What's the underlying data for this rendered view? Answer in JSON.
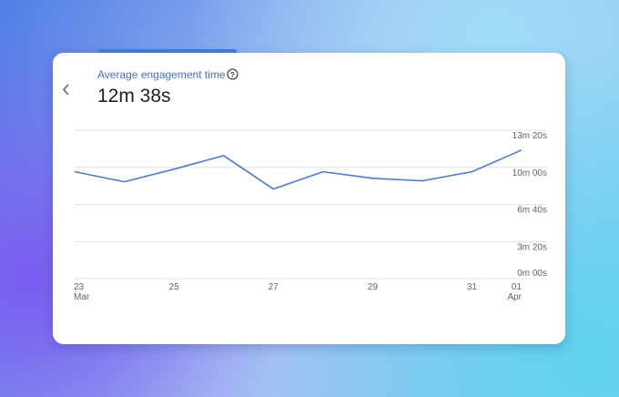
{
  "header": {
    "title": "Average engagement time",
    "value": "12m 38s"
  },
  "chart_data": {
    "type": "line",
    "categories": [
      "23",
      null,
      "25",
      null,
      "27",
      null,
      "29",
      null,
      "31",
      "01"
    ],
    "category_sublabels": [
      "Mar",
      null,
      null,
      null,
      null,
      null,
      null,
      null,
      null,
      "Apr"
    ],
    "series": [
      {
        "name": "Average engagement time",
        "color": "#4a7bd0",
        "values": [
          576,
          522,
          590,
          663,
          483,
          576,
          541,
          527,
          576,
          693
        ]
      }
    ],
    "ylim": [
      0,
      800
    ],
    "yticks": [
      {
        "value": 800,
        "label": "13m 20s"
      },
      {
        "value": 600,
        "label": "10m 00s"
      },
      {
        "value": 400,
        "label": "6m 40s"
      },
      {
        "value": 200,
        "label": "3m 20s"
      },
      {
        "value": 0,
        "label": "0m 00s"
      }
    ],
    "grid": true
  }
}
